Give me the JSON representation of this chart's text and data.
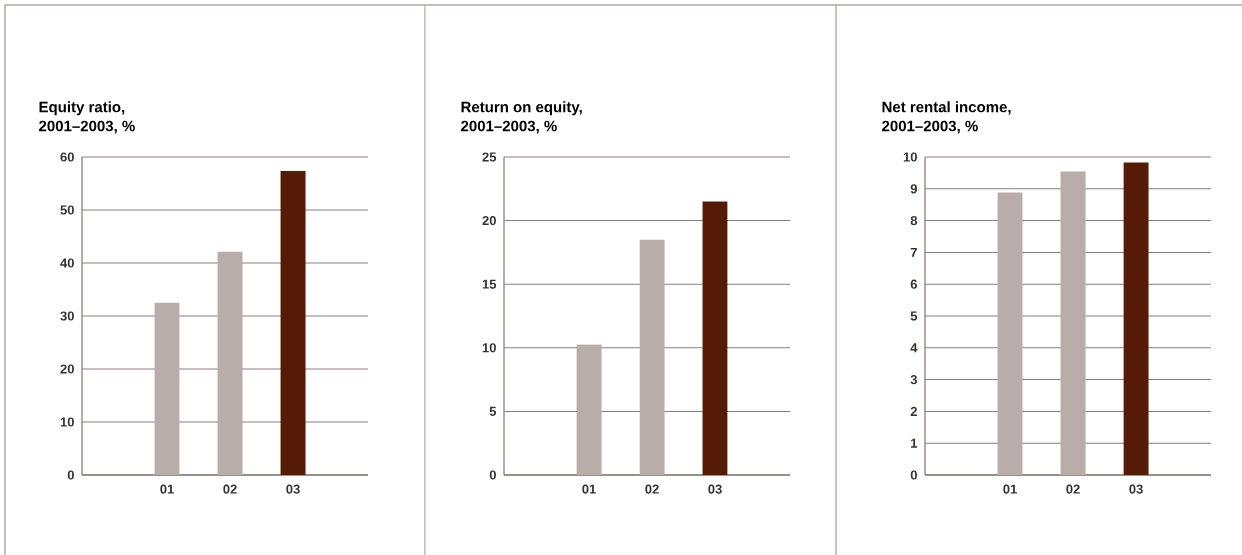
{
  "chart_data": [
    {
      "type": "bar",
      "title": "Equity ratio,",
      "subtitle": "2001–2003, %",
      "categories": [
        "01",
        "02",
        "03"
      ],
      "values": [
        32.5,
        42.1,
        57.4
      ],
      "colors": [
        "#b8ada8",
        "#b8ada8",
        "#561b07"
      ],
      "ylim": [
        0,
        60
      ],
      "yticks": [
        0,
        10,
        20,
        30,
        40,
        50,
        60
      ],
      "grid": "y"
    },
    {
      "type": "bar",
      "title": "Return on equity,",
      "subtitle": "2001–2003, %",
      "categories": [
        "01",
        "02",
        "03"
      ],
      "values": [
        10.25,
        18.5,
        21.5
      ],
      "colors": [
        "#b8ada8",
        "#b8ada8",
        "#561b07"
      ],
      "ylim": [
        0,
        25
      ],
      "yticks": [
        0,
        5,
        10,
        15,
        20,
        25
      ],
      "grid": "y"
    },
    {
      "type": "bar",
      "title": "Net rental income,",
      "subtitle": "2001–2003, %",
      "categories": [
        "01",
        "02",
        "03"
      ],
      "values": [
        8.88,
        9.54,
        9.83
      ],
      "colors": [
        "#b8ada8",
        "#b8ada8",
        "#561b07"
      ],
      "ylim": [
        0,
        10
      ],
      "yticks": [
        0,
        1,
        2,
        3,
        4,
        5,
        6,
        7,
        8,
        9,
        10
      ],
      "grid": "y"
    }
  ]
}
